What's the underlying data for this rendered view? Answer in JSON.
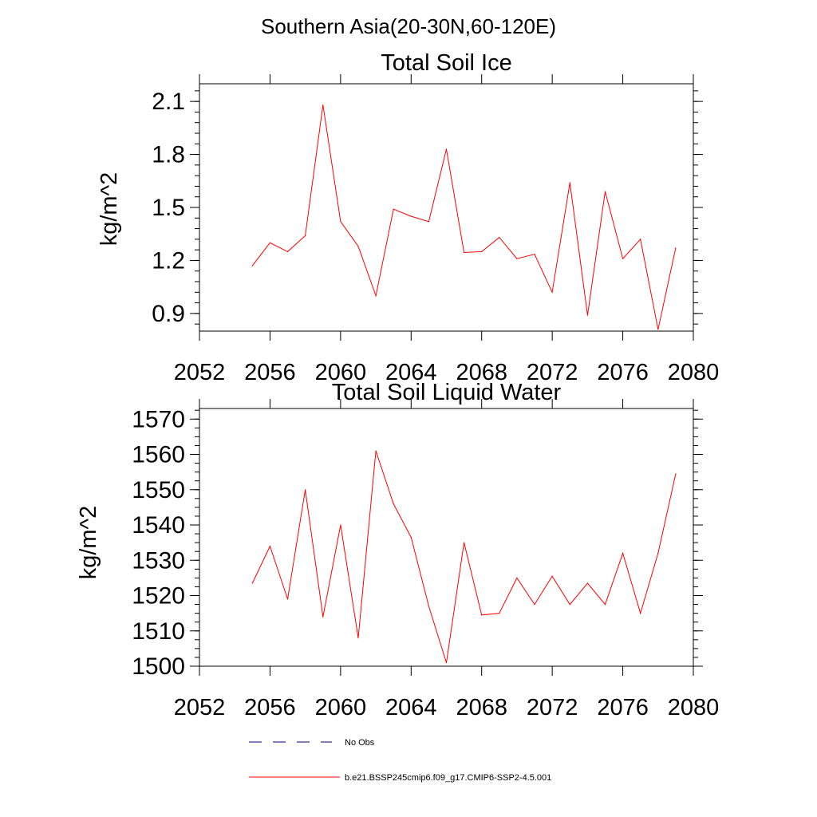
{
  "suptitle": "Southern Asia(20-30N,60-120E)",
  "colors": {
    "series": "#ff0000",
    "obs": "#000080",
    "axis": "#000000"
  },
  "chart_data": [
    {
      "type": "line",
      "title": "Total Soil Ice",
      "ylabel": "kg/m^2",
      "xlabel": "",
      "xlim": [
        2052,
        2080
      ],
      "ylim": [
        0.8,
        2.2
      ],
      "xticks": [
        2052,
        2056,
        2060,
        2064,
        2068,
        2072,
        2076,
        2080
      ],
      "yticks": [
        0.9,
        1.2,
        1.5,
        1.8,
        2.1
      ],
      "ytick_labels": [
        "0.9",
        "1.2",
        "1.5",
        "1.8",
        "2.1"
      ],
      "x": [
        2055,
        2056,
        2057,
        2058,
        2059,
        2060,
        2061,
        2062,
        2063,
        2064,
        2065,
        2066,
        2067,
        2068,
        2069,
        2070,
        2071,
        2072,
        2073,
        2074,
        2075,
        2076,
        2077,
        2078,
        2079
      ],
      "series": [
        {
          "values": [
            1.17,
            1.3,
            1.25,
            1.34,
            2.08,
            1.42,
            1.28,
            1.0,
            1.49,
            1.45,
            1.42,
            1.83,
            1.245,
            1.25,
            1.33,
            1.21,
            1.235,
            1.02,
            1.64,
            0.89,
            1.59,
            1.21,
            1.32,
            0.81,
            1.27
          ]
        }
      ]
    },
    {
      "type": "line",
      "title": "Total Soil Liquid Water",
      "ylabel": "kg/m^2",
      "xlabel": "",
      "xlim": [
        2052,
        2080
      ],
      "ylim": [
        1500,
        1573
      ],
      "xticks": [
        2052,
        2056,
        2060,
        2064,
        2068,
        2072,
        2076,
        2080
      ],
      "yticks": [
        1500,
        1510,
        1520,
        1530,
        1540,
        1550,
        1560,
        1570
      ],
      "ytick_labels": [
        "1500",
        "1510",
        "1520",
        "1530",
        "1540",
        "1550",
        "1560",
        "1570"
      ],
      "x": [
        2055,
        2056,
        2057,
        2058,
        2059,
        2060,
        2061,
        2062,
        2063,
        2064,
        2065,
        2066,
        2067,
        2068,
        2069,
        2070,
        2071,
        2072,
        2073,
        2074,
        2075,
        2076,
        2077,
        2078,
        2079
      ],
      "series": [
        {
          "values": [
            1523.5,
            1534,
            1519,
            1550,
            1514,
            1540,
            1508,
            1561,
            1546,
            1536.5,
            1517,
            1501,
            1535,
            1514.5,
            1515,
            1525,
            1517.5,
            1525.5,
            1517.5,
            1523.5,
            1517.5,
            1532,
            1515,
            1532,
            1554.5
          ]
        }
      ]
    }
  ],
  "legend": {
    "placement": "bottom",
    "items": [
      {
        "label": "No Obs",
        "style": "dashed"
      },
      {
        "label": "b.e21.BSSP245cmip6.f09_g17.CMIP6-SSP2-4.5.001",
        "style": "solid"
      }
    ]
  }
}
